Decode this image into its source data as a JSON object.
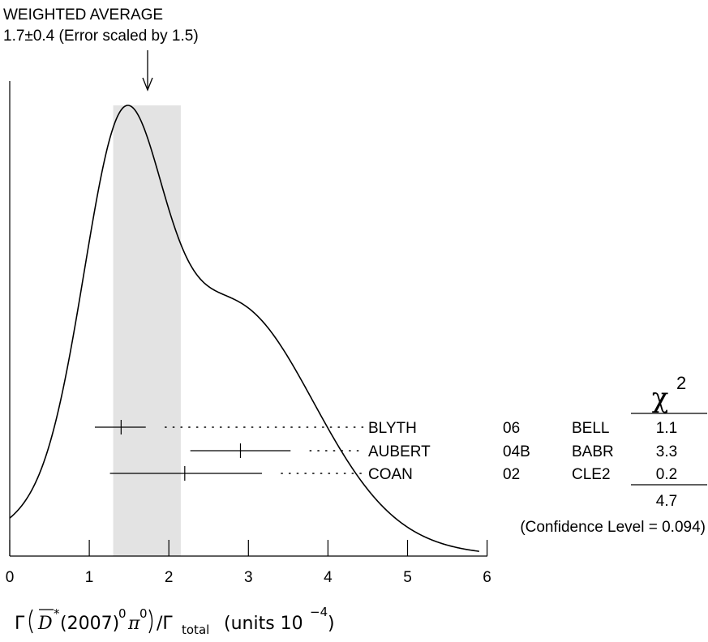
{
  "header": {
    "line1": "WEIGHTED AVERAGE",
    "line2": "1.7±0.4 (Error scaled by 1.5)"
  },
  "xaxis_label": {
    "gamma": "Γ",
    "paren_open": "(",
    "dstar": "D",
    "star": "*",
    "mass": "(2007)",
    "sup0": "0",
    "pi": "π",
    "sup0b": "0",
    "paren_close": ")",
    "slash": "/Γ",
    "total": "total",
    "units": "(units 10",
    "exp": "−4",
    "close": ")"
  },
  "chi2_header": {
    "symbol": "χ",
    "exponent": "2"
  },
  "summary": {
    "chi2_total": "4.7",
    "confidence": "(Confidence Level = 0.094)"
  },
  "chart_data": {
    "type": "ideogram",
    "title": "",
    "xlabel": "Γ(D̄*(2007)⁰π⁰)/Γtotal (units 10⁻⁴)",
    "ylabel": "",
    "xlim": [
      0,
      6
    ],
    "xticks": [
      "0",
      "1",
      "2",
      "3",
      "4",
      "5",
      "6"
    ],
    "weighted_average": {
      "value": 1.7,
      "error": 0.4,
      "scale_factor": 1.5,
      "band": [
        1.3,
        2.15
      ]
    },
    "measurements": [
      {
        "author": "BLYTH",
        "year": "06",
        "experiment": "BELL",
        "value": 1.4,
        "err_low": 0.33,
        "err_high": 0.31,
        "chi2": "1.1"
      },
      {
        "author": "AUBERT",
        "year": "04B",
        "experiment": "BABR",
        "value": 2.9,
        "err_low": 0.63,
        "err_high": 0.63,
        "chi2": "3.3"
      },
      {
        "author": "COAN",
        "year": "02",
        "experiment": "CLE2",
        "value": 2.2,
        "err_low": 0.94,
        "err_high": 0.97,
        "chi2": "0.2"
      }
    ]
  }
}
